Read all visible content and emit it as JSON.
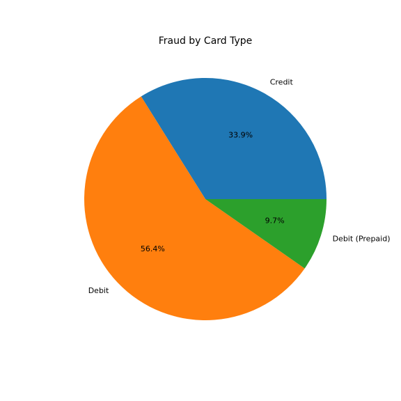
{
  "chart_data": {
    "type": "pie",
    "title": "Fraud by Card Type",
    "labels": [
      "Credit",
      "Debit",
      "Debit (Prepaid)"
    ],
    "values": [
      33.9,
      56.4,
      9.7
    ],
    "percent_labels": [
      "33.9%",
      "56.4%",
      "9.7%"
    ],
    "colors": [
      "#1f77b4",
      "#ff7f0e",
      "#2ca02c"
    ],
    "start_angle_deg": 0,
    "direction": "counterclockwise",
    "legend": "none"
  }
}
